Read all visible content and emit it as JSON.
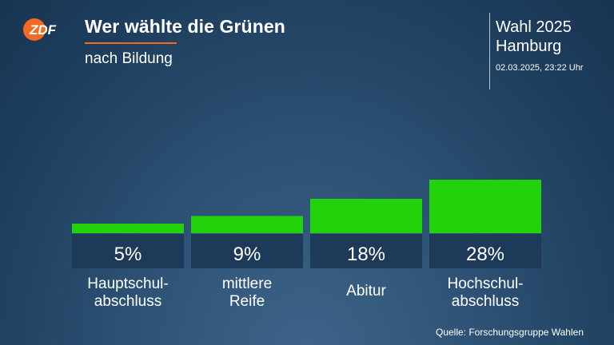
{
  "logo": {
    "text": "ZDF",
    "color": "#f26b21"
  },
  "header": {
    "title": "Wer wählte die Grünen",
    "subtitle": "nach Bildung",
    "election_title": "Wahl 2025",
    "election_region": "Hamburg",
    "timestamp": "02.03.2025, 23:22 Uhr"
  },
  "footer": {
    "source": "Quelle: Forschungsgruppe Wahlen"
  },
  "colors": {
    "bar": "#22d20a",
    "value_box": "#1d3a58",
    "accent": "#f26b21"
  },
  "chart_data": {
    "type": "bar",
    "title": "Wer wählte die Grünen",
    "subtitle": "nach Bildung",
    "categories": [
      [
        "Hauptschul-",
        "abschluss"
      ],
      [
        "mittlere",
        "Reife"
      ],
      [
        "Abitur"
      ],
      [
        "Hochschul-",
        "abschluss"
      ]
    ],
    "values": [
      5,
      9,
      18,
      28
    ],
    "value_labels": [
      "5%",
      "9%",
      "18%",
      "28%"
    ],
    "unit": "%",
    "grid": false,
    "legend": "none"
  }
}
